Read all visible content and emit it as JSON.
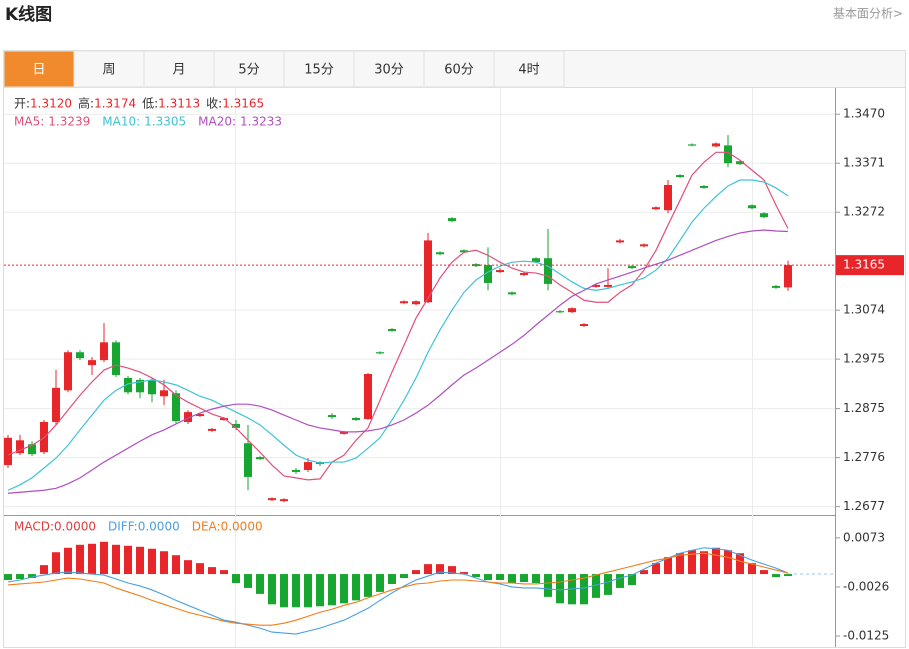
{
  "header": {
    "title": "K线图",
    "link": "基本面分析>"
  },
  "tabs": [
    "日",
    "周",
    "月",
    "5分",
    "15分",
    "30分",
    "60分",
    "4时"
  ],
  "active_tab": 0,
  "chart_data": [
    {
      "type": "candlestick",
      "quote": [
        {
          "name": "开:",
          "value": 1.312,
          "label": "1.3120"
        },
        {
          "name": "高:",
          "value": 1.3174
        },
        {
          "name": "低:",
          "value": 1.3113
        },
        {
          "name": "收:",
          "value": 1.3165
        }
      ],
      "open": [
        1.2761,
        1.2785,
        1.2803,
        1.2787,
        1.2848,
        1.2912,
        1.2989,
        1.2963,
        1.2973,
        1.3009,
        1.2937,
        1.2933,
        1.2933,
        1.29,
        1.2906,
        1.2848,
        1.286,
        1.283,
        1.2852,
        1.2844,
        1.2805,
        1.2777,
        1.269,
        1.2688,
        1.2751,
        1.2751,
        1.2767,
        1.2862,
        1.2824,
        1.2856,
        1.2854,
        1.2989,
        1.3036,
        1.3088,
        1.3086,
        1.309,
        1.3191,
        1.326,
        1.3195,
        1.3167,
        1.3165,
        1.3151,
        1.311,
        1.3145,
        1.3179,
        1.3179,
        1.3072,
        1.307,
        1.3042,
        1.3121,
        1.3121,
        1.3211,
        1.3163,
        1.3203,
        1.3278,
        1.3276,
        1.3347,
        1.3409,
        1.3325,
        1.3405,
        1.3407,
        1.3375,
        1.3286,
        1.327,
        1.3123,
        1.312
      ],
      "high": [
        1.2822,
        1.2822,
        1.2809,
        1.2852,
        1.2953,
        1.2993,
        1.2993,
        1.2979,
        1.3048,
        1.3013,
        1.2941,
        1.2937,
        1.2937,
        1.2933,
        1.2912,
        1.2872,
        1.2866,
        1.2836,
        1.2858,
        1.2852,
        1.2842,
        1.2779,
        1.2696,
        1.2694,
        1.2755,
        1.2775,
        1.2769,
        1.2866,
        1.283,
        1.2858,
        1.2947,
        1.2991,
        1.3038,
        1.3094,
        1.3094,
        1.323,
        1.3193,
        1.3262,
        1.3197,
        1.3169,
        1.3201,
        1.3159,
        1.3112,
        1.3151,
        1.3181,
        1.3238,
        1.3074,
        1.308,
        1.3048,
        1.3127,
        1.3159,
        1.3218,
        1.3165,
        1.3209,
        1.3284,
        1.3337,
        1.3349,
        1.3411,
        1.3327,
        1.3413,
        1.3428,
        1.3377,
        1.3288,
        1.3272,
        1.3125,
        1.3174
      ],
      "low": [
        1.2755,
        1.2781,
        1.2779,
        1.2783,
        1.2842,
        1.2908,
        1.2973,
        1.2943,
        1.2969,
        1.2939,
        1.2904,
        1.2896,
        1.2888,
        1.2882,
        1.2846,
        1.2844,
        1.2858,
        1.2828,
        1.285,
        1.2832,
        1.271,
        1.2771,
        1.2688,
        1.2686,
        1.2743,
        1.2747,
        1.2759,
        1.2854,
        1.2822,
        1.285,
        1.2852,
        1.2985,
        1.303,
        1.3086,
        1.3084,
        1.3088,
        1.3185,
        1.3252,
        1.3189,
        1.3161,
        1.3114,
        1.3149,
        1.3104,
        1.3143,
        1.3169,
        1.3114,
        1.3068,
        1.3068,
        1.304,
        1.3119,
        1.3119,
        1.3209,
        1.3157,
        1.3201,
        1.3276,
        1.327,
        1.3341,
        1.3405,
        1.3319,
        1.3403,
        1.3363,
        1.3367,
        1.3278,
        1.326,
        1.3117,
        1.3113
      ],
      "close": [
        1.2816,
        1.2811,
        1.2783,
        1.2848,
        1.2917,
        1.2989,
        1.2977,
        1.2973,
        1.3009,
        1.2943,
        1.2908,
        1.2908,
        1.2904,
        1.2912,
        1.285,
        1.2868,
        1.2864,
        1.2834,
        1.2856,
        1.2836,
        1.2737,
        1.2773,
        1.2694,
        1.2692,
        1.2747,
        1.2767,
        1.2763,
        1.2858,
        1.2828,
        1.2852,
        1.2945,
        1.2987,
        1.3032,
        1.3092,
        1.3092,
        1.3215,
        1.3187,
        1.3254,
        1.3191,
        1.3163,
        1.3129,
        1.3155,
        1.3106,
        1.3149,
        1.3171,
        1.3127,
        1.307,
        1.3078,
        1.3046,
        1.3125,
        1.3125,
        1.3215,
        1.3159,
        1.3207,
        1.3282,
        1.3327,
        1.3343,
        1.3407,
        1.3321,
        1.3411,
        1.3371,
        1.3369,
        1.328,
        1.3262,
        1.3119,
        1.3165
      ],
      "up_color": "#e8262a",
      "down_color": "#17a62f",
      "series": [
        {
          "name": "MA5:",
          "color": "#e0507a",
          "values": [
            1.2781,
            1.2791,
            1.2801,
            1.2816,
            1.2842,
            1.2872,
            1.2902,
            1.2929,
            1.2953,
            1.2963,
            1.2957,
            1.2949,
            1.2937,
            1.2923,
            1.2902,
            1.2888,
            1.2876,
            1.2864,
            1.2856,
            1.2836,
            1.2811,
            1.2787,
            1.2761,
            1.2739,
            1.2735,
            1.2731,
            1.2733,
            1.2767,
            1.2781,
            1.2811,
            1.2836,
            1.2892,
            1.2949,
            1.3003,
            1.3058,
            1.3098,
            1.3139,
            1.3171,
            1.3191,
            1.3195,
            1.3185,
            1.3171,
            1.3159,
            1.3151,
            1.3149,
            1.3143,
            1.3125,
            1.311,
            1.3094,
            1.309,
            1.309,
            1.311,
            1.3125,
            1.3155,
            1.3195,
            1.3246,
            1.3296,
            1.3347,
            1.3373,
            1.3393,
            1.3393,
            1.3377,
            1.3357,
            1.3337,
            1.3286,
            1.3239
          ]
        },
        {
          "name": "MA10:",
          "color": "#3ec3d6",
          "values": [
            1.271,
            1.2721,
            1.2735,
            1.2755,
            1.2775,
            1.2801,
            1.2832,
            1.2862,
            1.2892,
            1.2912,
            1.2925,
            1.2929,
            1.2933,
            1.2929,
            1.2923,
            1.2912,
            1.29,
            1.2892,
            1.288,
            1.2868,
            1.2856,
            1.2842,
            1.2822,
            1.2801,
            1.2781,
            1.2771,
            1.2765,
            1.2767,
            1.2767,
            1.2775,
            1.2795,
            1.2816,
            1.2852,
            1.2892,
            1.2937,
            1.2989,
            1.3034,
            1.3074,
            1.311,
            1.3135,
            1.3151,
            1.3163,
            1.3171,
            1.3173,
            1.3171,
            1.3163,
            1.3147,
            1.3131,
            1.3118,
            1.3114,
            1.3118,
            1.3125,
            1.3131,
            1.3139,
            1.3155,
            1.3179,
            1.3215,
            1.3252,
            1.328,
            1.3304,
            1.3325,
            1.3337,
            1.3337,
            1.3333,
            1.3321,
            1.3305
          ]
        },
        {
          "name": "MA20:",
          "color": "#b04fc0",
          "values": [
            1.2704,
            1.2706,
            1.2708,
            1.271,
            1.2714,
            1.2723,
            1.2735,
            1.2751,
            1.2767,
            1.2781,
            1.2795,
            1.2809,
            1.2822,
            1.2832,
            1.2844,
            1.2856,
            1.2866,
            1.2874,
            1.288,
            1.2884,
            1.2884,
            1.288,
            1.2872,
            1.2862,
            1.2852,
            1.2842,
            1.2836,
            1.2832,
            1.2828,
            1.2828,
            1.283,
            1.2834,
            1.2842,
            1.2852,
            1.2866,
            1.2882,
            1.2902,
            1.2923,
            1.2943,
            1.2957,
            1.2973,
            1.2989,
            1.3005,
            1.3023,
            1.3044,
            1.3064,
            1.3084,
            1.3102,
            1.3114,
            1.3127,
            1.3135,
            1.3143,
            1.3151,
            1.3159,
            1.3167,
            1.3175,
            1.3185,
            1.3195,
            1.3205,
            1.3215,
            1.3223,
            1.323,
            1.3234,
            1.3236,
            1.3234,
            1.3233
          ]
        }
      ],
      "ylim": [
        1.266,
        1.3523
      ],
      "yticks": [
        {
          "value": 1.347,
          "label": "1.3470"
        },
        1.3371,
        1.3272,
        1.3074,
        1.2975,
        1.2875,
        1.2776,
        1.2677
      ],
      "last_price": 1.3165,
      "grid": true
    },
    {
      "type": "macd",
      "histogram_name": "MACD:",
      "histogram_color": "#e03c3c",
      "histogram_legend_value": {
        "value": 0,
        "label": "0.0000"
      },
      "values": [
        -0.0012,
        -0.001,
        -0.0008,
        0.0018,
        0.0044,
        0.0053,
        0.0059,
        0.0061,
        0.0065,
        0.0059,
        0.0057,
        0.0055,
        0.0051,
        0.0046,
        0.0038,
        0.0028,
        0.0022,
        0.0014,
        0.0008,
        -0.0018,
        -0.0028,
        -0.004,
        -0.0061,
        -0.0067,
        -0.0067,
        -0.0067,
        -0.0065,
        -0.0063,
        -0.0059,
        -0.0053,
        -0.0046,
        -0.0036,
        -0.002,
        -0.0008,
        0.0008,
        0.002,
        0.002,
        0.0016,
        0.0004,
        -0.0006,
        -0.0012,
        -0.0012,
        -0.0018,
        -0.0016,
        -0.0018,
        -0.0046,
        -0.0059,
        -0.0061,
        -0.0061,
        -0.0048,
        -0.0042,
        -0.0028,
        -0.0022,
        0.0008,
        0.0022,
        0.0034,
        0.0042,
        0.0048,
        0.0046,
        0.0053,
        0.0048,
        0.0042,
        0.0022,
        0.0008,
        -0.0006,
        -0.0004
      ],
      "up_color": "#e8262a",
      "down_color": "#17a62f",
      "series": [
        {
          "name": "DIFF:",
          "color": "#4a9fe0",
          "legend_value": {
            "value": 0,
            "label": "0.0000"
          },
          "values": [
            -0.0016,
            -0.0012,
            -0.0006,
            -0.0002,
            0.0002,
            0.0004,
            0.0002,
            0,
            -0.0002,
            -0.001,
            -0.0018,
            -0.0024,
            -0.0032,
            -0.0042,
            -0.0053,
            -0.0063,
            -0.0073,
            -0.0083,
            -0.0093,
            -0.0097,
            -0.0103,
            -0.0109,
            -0.0117,
            -0.0119,
            -0.0121,
            -0.0115,
            -0.0109,
            -0.0101,
            -0.0093,
            -0.0081,
            -0.0069,
            -0.0053,
            -0.0038,
            -0.0024,
            -0.0012,
            -0.0004,
            0.0004,
            0.0002,
            0,
            -0.0008,
            -0.0016,
            -0.002,
            -0.0026,
            -0.0028,
            -0.0028,
            -0.003,
            -0.0032,
            -0.003,
            -0.0028,
            -0.0022,
            -0.0016,
            -0.0008,
            -0.0002,
            0.001,
            0.0022,
            0.0032,
            0.0042,
            0.0048,
            0.0053,
            0.0051,
            0.0048,
            0.0038,
            0.0028,
            0.002,
            0.0012,
            0.0002
          ]
        },
        {
          "name": "DEA:",
          "color": "#f07d1a",
          "legend_value": {
            "value": 0,
            "label": "0.0000"
          },
          "values": [
            -0.0022,
            -0.002,
            -0.0018,
            -0.0016,
            -0.0012,
            -0.0008,
            -0.001,
            -0.0014,
            -0.0018,
            -0.0028,
            -0.0036,
            -0.0044,
            -0.0053,
            -0.0061,
            -0.0069,
            -0.0077,
            -0.0083,
            -0.0089,
            -0.0095,
            -0.0099,
            -0.0101,
            -0.0103,
            -0.0103,
            -0.0099,
            -0.0093,
            -0.0085,
            -0.0077,
            -0.0071,
            -0.0063,
            -0.0057,
            -0.0048,
            -0.004,
            -0.0032,
            -0.0026,
            -0.002,
            -0.0018,
            -0.0014,
            -0.0012,
            -0.0012,
            -0.0014,
            -0.0016,
            -0.0018,
            -0.0018,
            -0.002,
            -0.002,
            -0.0018,
            -0.0016,
            -0.0012,
            -0.0008,
            -0.0002,
            0.0004,
            0.001,
            0.0016,
            0.0022,
            0.0028,
            0.0032,
            0.0038,
            0.004,
            0.0042,
            0.0038,
            0.0034,
            0.0026,
            0.002,
            0.0014,
            0.0008,
            0.0002
          ]
        }
      ],
      "ylim": [
        -0.0143,
        0.0113
      ],
      "yticks": [
        0.0073,
        -0.0026,
        -0.0125
      ]
    }
  ]
}
